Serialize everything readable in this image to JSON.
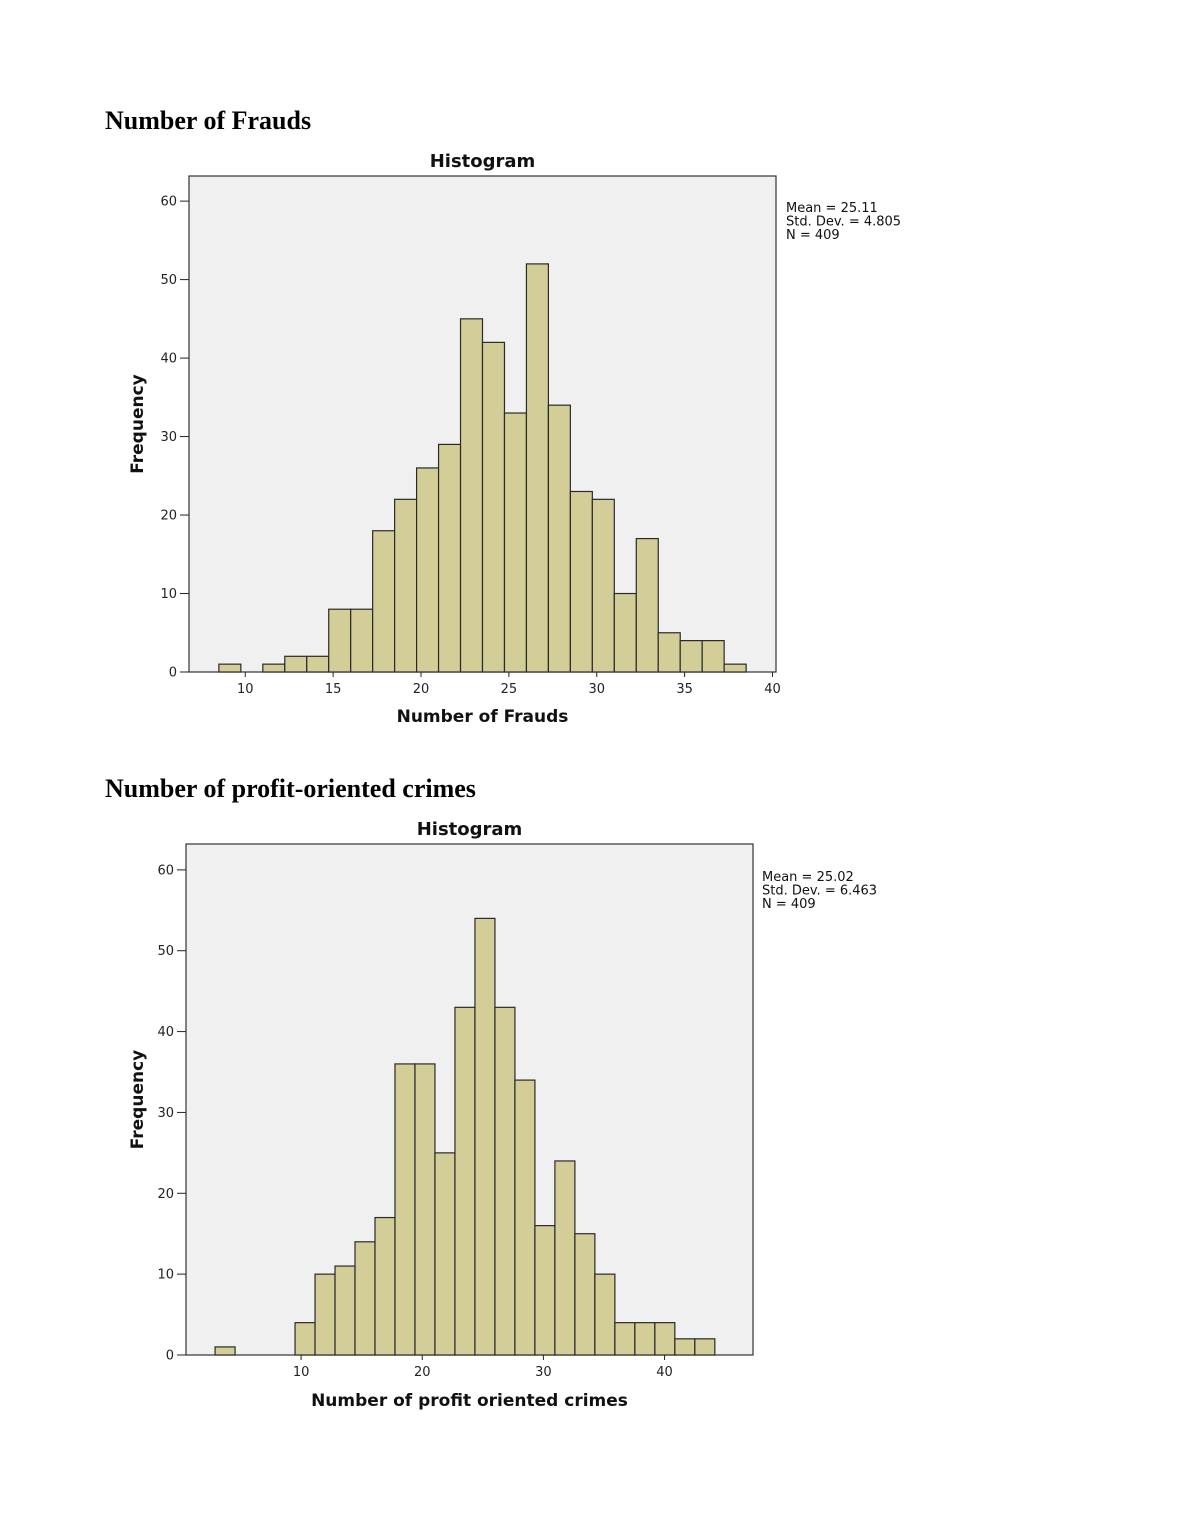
{
  "sections": [
    {
      "heading": "Number of Frauds"
    },
    {
      "heading": "Number of profit-oriented crimes"
    }
  ],
  "chart_data": [
    {
      "type": "bar",
      "title": "Histogram",
      "xlabel": "Number of Frauds",
      "ylabel": "Frequency",
      "xlim": [
        6.8,
        40.2
      ],
      "ylim": [
        0,
        63.2
      ],
      "bin_width": 1.25,
      "xticks": [
        10,
        15,
        20,
        25,
        30,
        35,
        40
      ],
      "yticks": [
        0,
        10,
        20,
        30,
        40,
        50,
        60
      ],
      "bins": [
        {
          "start": 8.5,
          "count": 1
        },
        {
          "start": 11.0,
          "count": 1
        },
        {
          "start": 12.25,
          "count": 2
        },
        {
          "start": 13.5,
          "count": 2
        },
        {
          "start": 14.75,
          "count": 8
        },
        {
          "start": 16.0,
          "count": 8
        },
        {
          "start": 17.25,
          "count": 18
        },
        {
          "start": 18.5,
          "count": 22
        },
        {
          "start": 19.75,
          "count": 26
        },
        {
          "start": 21.0,
          "count": 29
        },
        {
          "start": 22.25,
          "count": 45
        },
        {
          "start": 23.5,
          "count": 42
        },
        {
          "start": 24.75,
          "count": 33
        },
        {
          "start": 26.0,
          "count": 52
        },
        {
          "start": 27.25,
          "count": 34
        },
        {
          "start": 28.5,
          "count": 23
        },
        {
          "start": 29.75,
          "count": 22
        },
        {
          "start": 31.0,
          "count": 10
        },
        {
          "start": 32.25,
          "count": 17
        },
        {
          "start": 33.5,
          "count": 5
        },
        {
          "start": 34.75,
          "count": 4
        },
        {
          "start": 36.0,
          "count": 4
        },
        {
          "start": 37.25,
          "count": 1
        }
      ],
      "stats": [
        "Mean = 25.11",
        "Std. Dev. = 4.805",
        "N = 409"
      ]
    },
    {
      "type": "bar",
      "title": "Histogram",
      "xlabel": "Number of profit oriented crimes",
      "ylabel": "Frequency",
      "xlim": [
        0.5,
        47.3
      ],
      "ylim": [
        0,
        63.2
      ],
      "bin_width": 1.65,
      "xticks": [
        10,
        20,
        30,
        40
      ],
      "yticks": [
        0,
        10,
        20,
        30,
        40,
        50,
        60
      ],
      "bins": [
        {
          "start": 2.9,
          "count": 1
        },
        {
          "start": 9.5,
          "count": 4
        },
        {
          "start": 11.15,
          "count": 10
        },
        {
          "start": 12.8,
          "count": 11
        },
        {
          "start": 14.45,
          "count": 14
        },
        {
          "start": 16.1,
          "count": 17
        },
        {
          "start": 17.75,
          "count": 36
        },
        {
          "start": 19.4,
          "count": 36
        },
        {
          "start": 21.05,
          "count": 25
        },
        {
          "start": 22.7,
          "count": 43
        },
        {
          "start": 24.35,
          "count": 54
        },
        {
          "start": 26.0,
          "count": 43
        },
        {
          "start": 27.65,
          "count": 34
        },
        {
          "start": 29.3,
          "count": 16
        },
        {
          "start": 30.95,
          "count": 24
        },
        {
          "start": 32.6,
          "count": 15
        },
        {
          "start": 34.25,
          "count": 10
        },
        {
          "start": 35.9,
          "count": 4
        },
        {
          "start": 37.55,
          "count": 4
        },
        {
          "start": 39.2,
          "count": 4
        },
        {
          "start": 40.85,
          "count": 2
        },
        {
          "start": 42.5,
          "count": 2
        }
      ],
      "stats": [
        "Mean = 25.02",
        "Std. Dev. = 6.463",
        "N = 409"
      ]
    }
  ]
}
